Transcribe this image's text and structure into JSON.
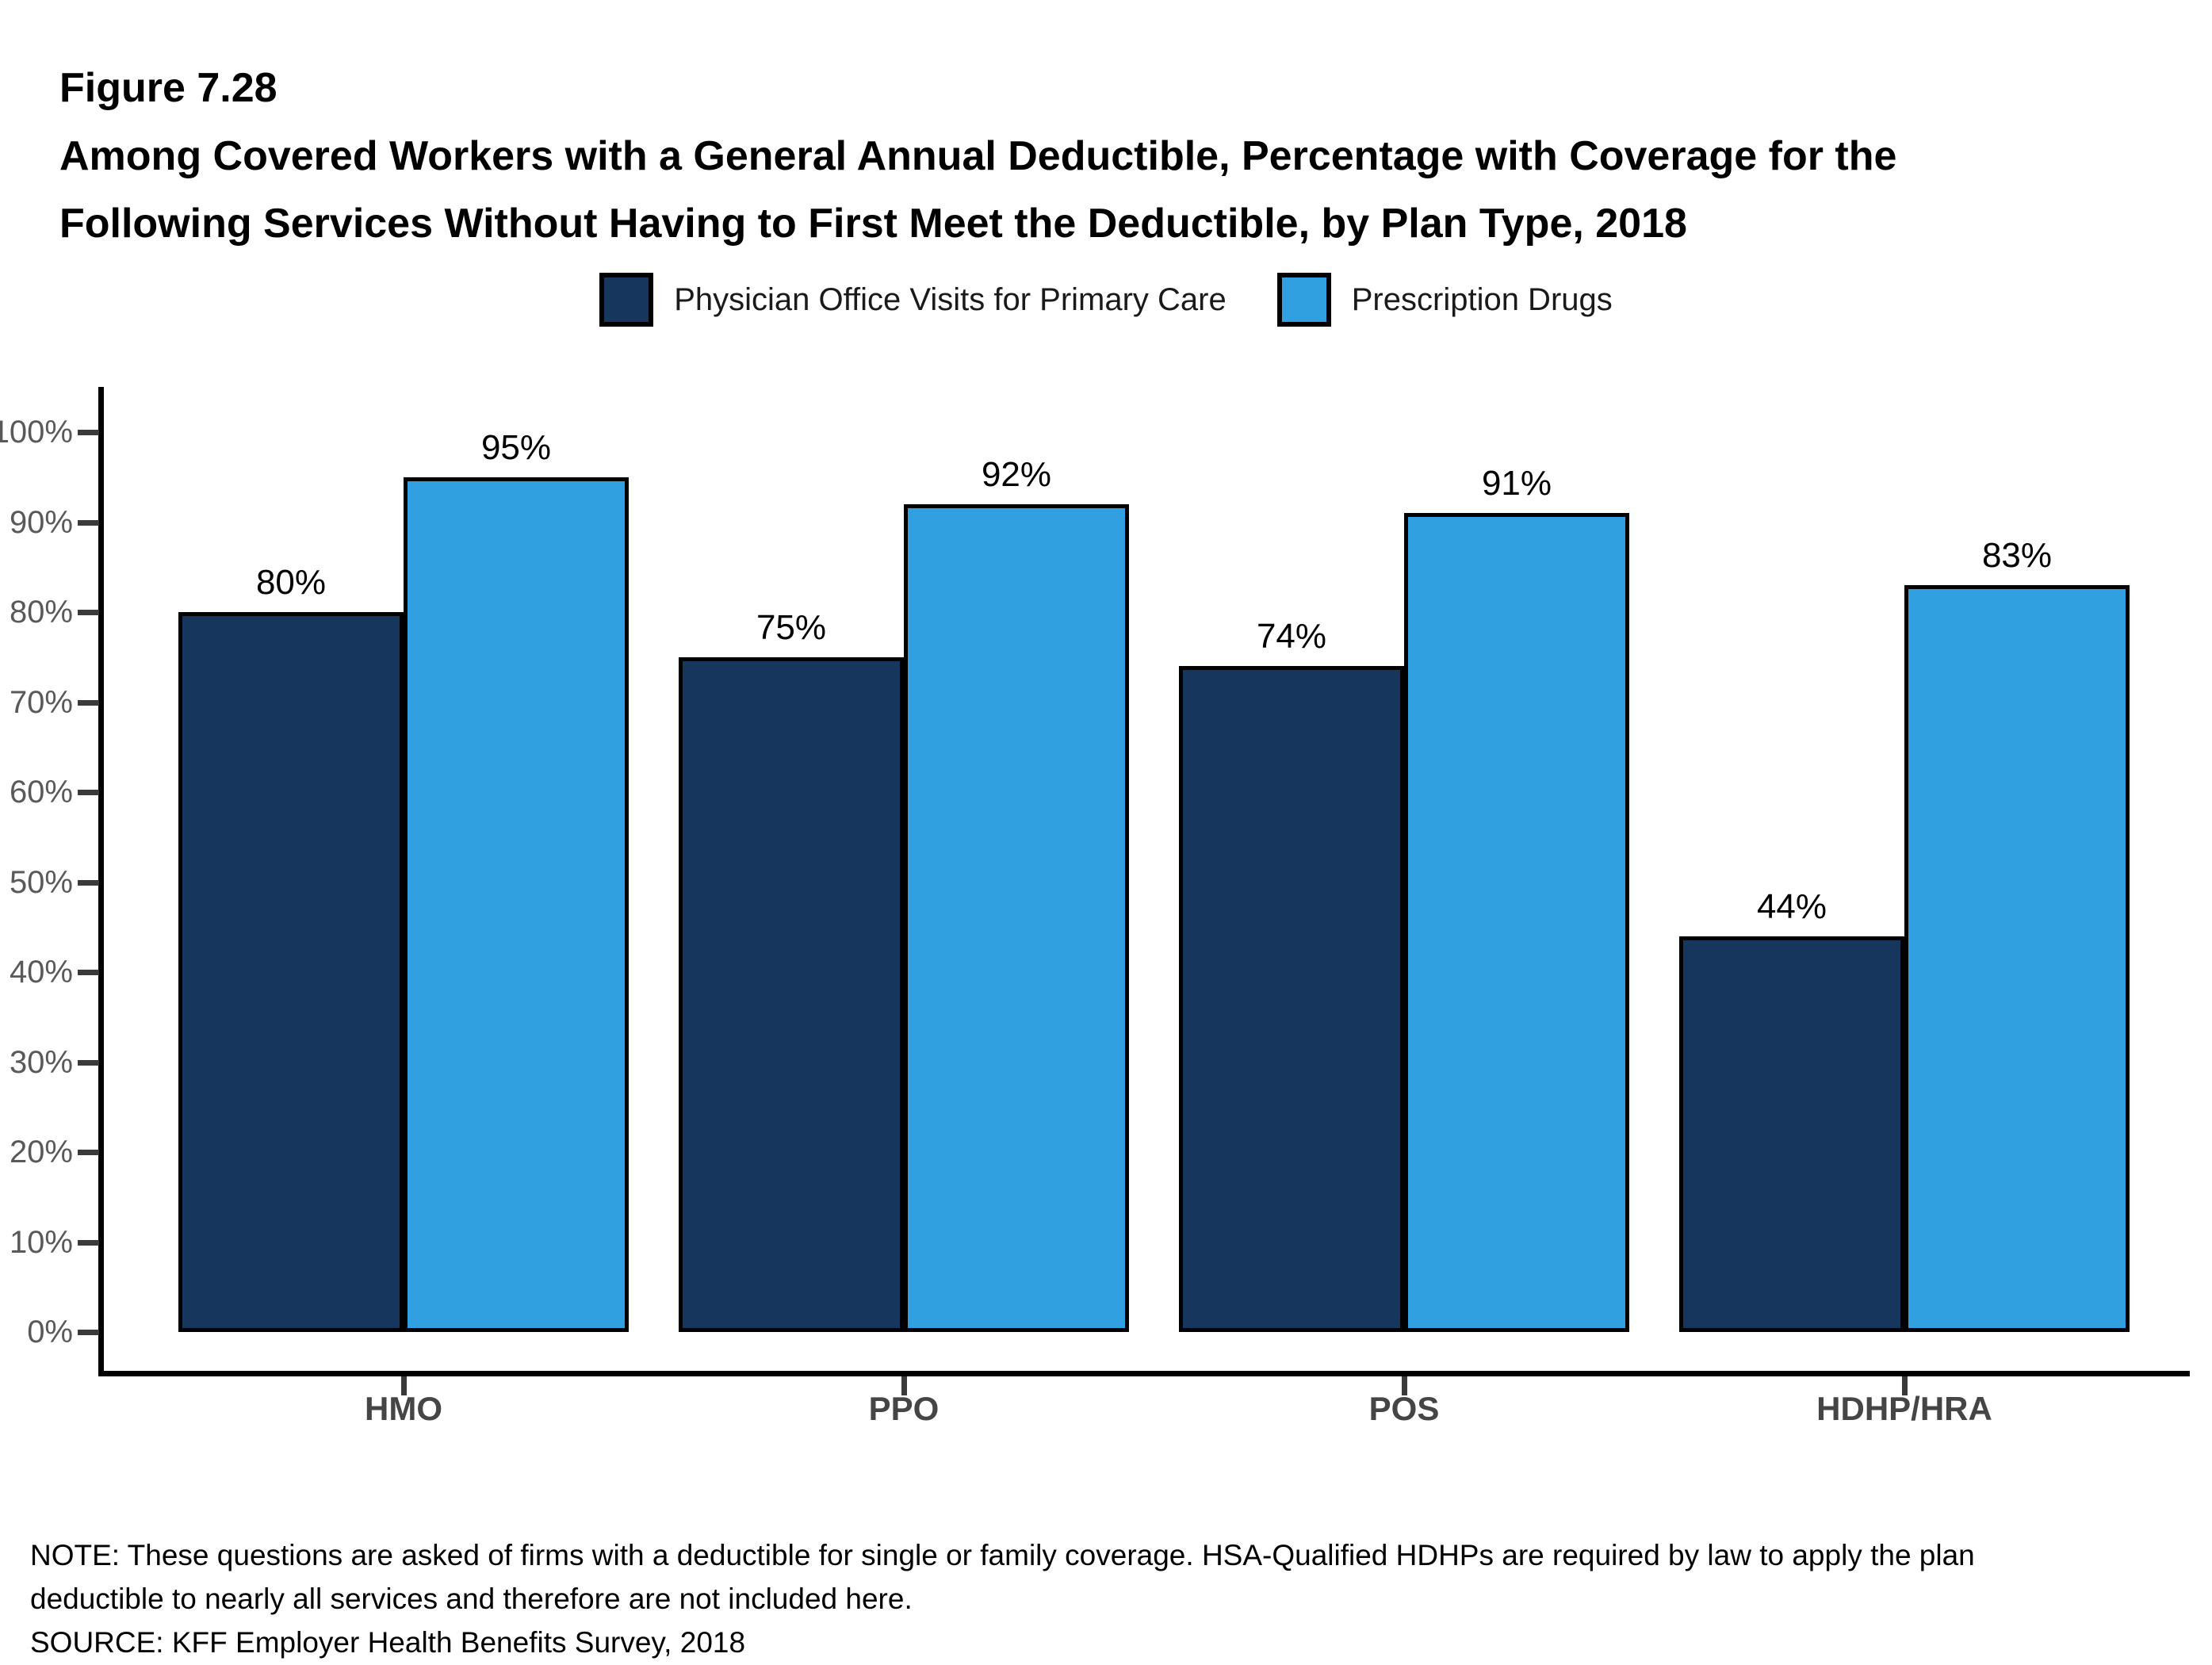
{
  "figure": {
    "number": "Figure 7.28",
    "title_line1": "Among Covered Workers with a General Annual Deductible, Percentage with Coverage for the",
    "title_line2": "Following Services Without Having to First Meet the Deductible, by Plan Type, 2018"
  },
  "legend": {
    "items": [
      {
        "label": "Physician Office Visits for Primary Care",
        "color": "#17365D"
      },
      {
        "label": "Prescription Drugs",
        "color": "#31A0E0"
      }
    ]
  },
  "chart_data": {
    "type": "bar",
    "categories": [
      "HMO",
      "PPO",
      "POS",
      "HDHP/HRA"
    ],
    "series": [
      {
        "name": "Physician Office Visits for Primary Care",
        "color": "#17365D",
        "values": [
          80,
          75,
          74,
          44
        ]
      },
      {
        "name": "Prescription Drugs",
        "color": "#31A0E0",
        "values": [
          95,
          92,
          91,
          83
        ]
      }
    ],
    "value_suffix": "%",
    "y_ticks": [
      "100%",
      "90%",
      "80%",
      "70%",
      "60%",
      "50%",
      "40%",
      "30%",
      "20%",
      "10%",
      "0%"
    ],
    "ylim": [
      0,
      100
    ],
    "grid": false,
    "legend_position": "top",
    "bar_labels": true,
    "axis_color": "#000000",
    "tick_label_color": "#595959",
    "category_label_color": "#454545"
  },
  "footer": {
    "note_line1": "NOTE: These questions are asked of firms with a deductible for single or family coverage. HSA-Qualified HDHPs are required by law to apply the plan",
    "note_line2": "deductible to nearly all services and therefore are not included here.",
    "source": "SOURCE: KFF Employer Health Benefits Survey, 2018"
  }
}
